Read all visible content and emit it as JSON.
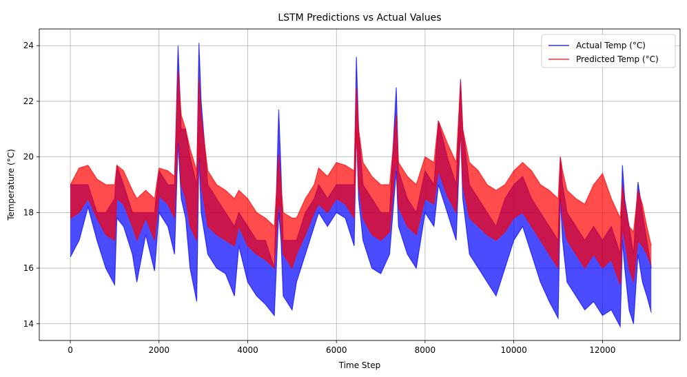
{
  "chart_data": {
    "type": "line",
    "title": "LSTM Predictions vs Actual Values",
    "xlabel": "Time Step",
    "ylabel": "Temperature (°C)",
    "xlim": [
      -700,
      13750
    ],
    "ylim": [
      13.4,
      24.6
    ],
    "xticks": [
      0,
      2000,
      4000,
      6000,
      8000,
      10000,
      12000
    ],
    "yticks": [
      14,
      16,
      18,
      20,
      22,
      24
    ],
    "grid": true,
    "legend_position": "top-right",
    "series": [
      {
        "name": "Actual Temp (°C)",
        "color": "#0000ff",
        "alpha": 0.7,
        "x": [
          0,
          200,
          400,
          600,
          800,
          1000,
          1050,
          1200,
          1400,
          1500,
          1700,
          1900,
          2000,
          2200,
          2350,
          2430,
          2500,
          2600,
          2700,
          2850,
          2900,
          2950,
          3100,
          3300,
          3500,
          3700,
          3800,
          4000,
          4200,
          4400,
          4600,
          4700,
          4750,
          4800,
          5000,
          5100,
          5300,
          5500,
          5600,
          5800,
          6000,
          6200,
          6400,
          6450,
          6500,
          6600,
          6800,
          7000,
          7200,
          7350,
          7400,
          7600,
          7800,
          8000,
          8200,
          8300,
          8500,
          8700,
          8800,
          8850,
          9000,
          9200,
          9400,
          9600,
          9800,
          10000,
          10200,
          10400,
          10600,
          10800,
          11000,
          11050,
          11100,
          11200,
          11400,
          11600,
          11800,
          12000,
          12200,
          12400,
          12450,
          12500,
          12600,
          12700,
          12800,
          12900,
          13000,
          13100
        ],
        "low": [
          16.4,
          17.0,
          18.2,
          17.0,
          16.0,
          15.4,
          17.8,
          17.5,
          16.5,
          15.5,
          17.2,
          15.9,
          18.0,
          17.5,
          16.5,
          20.5,
          18.5,
          17.8,
          16.0,
          14.8,
          20.0,
          18.0,
          16.5,
          16.0,
          15.8,
          15.0,
          16.8,
          15.5,
          15.0,
          14.7,
          14.3,
          18.0,
          17.0,
          15.0,
          14.5,
          15.5,
          16.5,
          17.5,
          18.0,
          17.5,
          18.0,
          17.8,
          16.8,
          21.0,
          18.5,
          17.0,
          16.0,
          15.8,
          16.5,
          19.5,
          17.5,
          16.5,
          16.0,
          18.0,
          17.5,
          19.0,
          18.0,
          17.0,
          21.0,
          18.5,
          16.5,
          16.0,
          15.5,
          15.0,
          16.0,
          17.0,
          17.5,
          16.5,
          15.5,
          14.8,
          14.2,
          18.5,
          17.0,
          15.5,
          15.0,
          14.5,
          14.8,
          14.3,
          14.5,
          13.9,
          17.0,
          16.0,
          14.5,
          14.0,
          16.5,
          15.5,
          15.0,
          14.4
        ],
        "high": [
          19.0,
          19.0,
          19.0,
          18.0,
          18.0,
          18.5,
          19.7,
          19.0,
          18.0,
          18.0,
          18.0,
          18.0,
          19.5,
          19.0,
          19.0,
          24.0,
          21.0,
          21.0,
          20.0,
          19.0,
          24.1,
          22.0,
          19.0,
          18.5,
          18.0,
          17.5,
          18.0,
          17.5,
          17.0,
          17.0,
          16.0,
          21.7,
          19.5,
          17.0,
          17.0,
          17.0,
          18.0,
          18.5,
          19.0,
          18.5,
          19.0,
          19.0,
          19.0,
          23.6,
          21.0,
          19.0,
          18.5,
          18.0,
          18.0,
          22.5,
          19.5,
          18.5,
          18.0,
          19.5,
          19.0,
          21.3,
          20.0,
          19.0,
          22.8,
          21.0,
          19.0,
          18.5,
          18.0,
          17.5,
          18.5,
          19.0,
          19.3,
          18.5,
          18.0,
          17.5,
          17.0,
          20.0,
          19.0,
          18.0,
          17.5,
          17.0,
          17.5,
          17.0,
          17.5,
          16.5,
          19.7,
          18.5,
          17.5,
          16.5,
          19.1,
          18.0,
          17.0,
          16.0
        ]
      },
      {
        "name": "Predicted Temp (°C)",
        "color": "#ff0000",
        "alpha": 0.7,
        "x": [
          0,
          200,
          400,
          600,
          800,
          1000,
          1050,
          1200,
          1400,
          1500,
          1700,
          1900,
          2000,
          2200,
          2350,
          2430,
          2500,
          2600,
          2700,
          2850,
          2900,
          2950,
          3100,
          3300,
          3500,
          3700,
          3800,
          4000,
          4200,
          4400,
          4600,
          4700,
          4750,
          4800,
          5000,
          5100,
          5300,
          5500,
          5600,
          5800,
          6000,
          6200,
          6400,
          6450,
          6500,
          6600,
          6800,
          7000,
          7200,
          7350,
          7400,
          7600,
          7800,
          8000,
          8200,
          8300,
          8500,
          8700,
          8800,
          8850,
          9000,
          9200,
          9400,
          9600,
          9800,
          10000,
          10200,
          10400,
          10600,
          10800,
          11000,
          11050,
          11100,
          11200,
          11400,
          11600,
          11800,
          12000,
          12200,
          12400,
          12450,
          12500,
          12600,
          12700,
          12800,
          12900,
          13000,
          13100
        ],
        "low": [
          17.8,
          18.0,
          18.5,
          17.8,
          17.2,
          17.0,
          18.5,
          18.3,
          17.5,
          17.0,
          17.8,
          17.0,
          18.6,
          18.3,
          17.8,
          21.0,
          19.0,
          18.5,
          17.5,
          17.0,
          20.5,
          19.0,
          17.5,
          17.2,
          17.0,
          16.8,
          17.5,
          16.8,
          16.5,
          16.3,
          16.0,
          18.5,
          17.5,
          16.5,
          16.0,
          16.5,
          17.2,
          18.0,
          18.3,
          18.0,
          18.5,
          18.3,
          17.8,
          21.0,
          19.0,
          17.8,
          17.2,
          17.0,
          17.3,
          20.0,
          18.2,
          17.5,
          17.2,
          18.5,
          18.3,
          19.5,
          18.6,
          18.0,
          21.0,
          19.0,
          17.8,
          17.5,
          17.2,
          17.0,
          17.3,
          17.8,
          18.0,
          17.5,
          17.0,
          16.5,
          16.0,
          18.8,
          17.8,
          17.0,
          16.5,
          16.0,
          16.5,
          16.0,
          16.3,
          15.4,
          17.5,
          17.0,
          16.0,
          15.5,
          17.0,
          16.8,
          16.5,
          16.1
        ],
        "high": [
          19.0,
          19.6,
          19.7,
          19.2,
          19.0,
          19.0,
          19.7,
          19.5,
          18.8,
          18.5,
          18.8,
          18.5,
          19.6,
          19.5,
          19.3,
          23.1,
          21.5,
          21.0,
          20.3,
          19.5,
          22.8,
          21.5,
          19.5,
          19.0,
          18.8,
          18.5,
          18.8,
          18.5,
          18.0,
          17.8,
          17.5,
          20.1,
          19.0,
          18.0,
          17.8,
          17.8,
          18.5,
          19.0,
          19.6,
          19.3,
          19.8,
          19.7,
          19.5,
          22.5,
          21.0,
          19.8,
          19.3,
          19.0,
          19.0,
          21.5,
          19.8,
          19.3,
          19.0,
          20.0,
          19.8,
          21.3,
          20.5,
          19.8,
          22.7,
          21.0,
          19.8,
          19.5,
          19.0,
          18.8,
          19.0,
          19.5,
          19.8,
          19.5,
          19.0,
          18.8,
          18.5,
          20.0,
          19.5,
          18.8,
          18.5,
          18.3,
          19.0,
          19.4,
          18.5,
          17.8,
          19.0,
          18.3,
          17.5,
          17.3,
          18.8,
          18.3,
          17.5,
          16.8
        ]
      }
    ]
  }
}
